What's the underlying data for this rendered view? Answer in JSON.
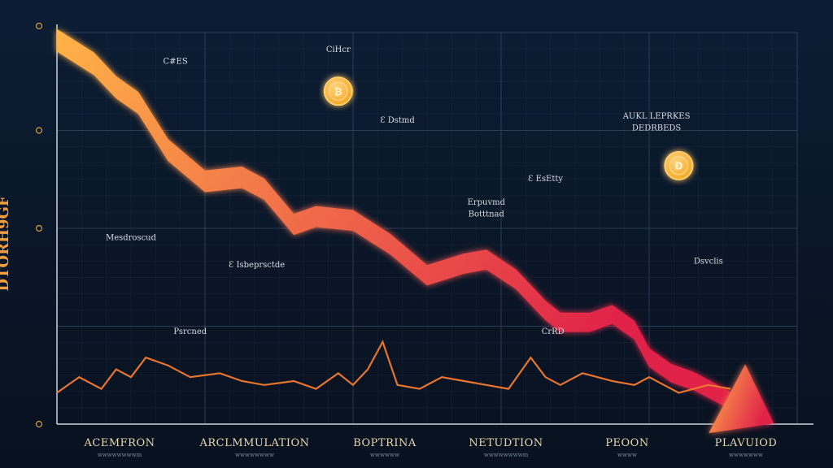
{
  "colors": {
    "background_top": "#0c1d33",
    "background_bottom": "#08111f",
    "grid": "#3a4c66",
    "trend_light": "#ffb347",
    "trend_dark": "#e0204a",
    "volume_line": "#e8752e",
    "coin": "#f5a623"
  },
  "chart_data": {
    "type": "line",
    "ylabel": "DTORH9GF",
    "x_axis_labels": [
      {
        "label": "ACEMFRON",
        "sub": "wwwwwwwwm"
      },
      {
        "label": "ARCLMMULATION",
        "sub": "wwwwwwww"
      },
      {
        "label": "BOPTRINA",
        "sub": "wwwwww"
      },
      {
        "label": "NETUDTION",
        "sub": "wwwwwwwwm"
      },
      {
        "label": "PEOON",
        "sub": "wwww"
      },
      {
        "label": "PLAVUIOD",
        "sub": "wwwwwww"
      }
    ],
    "xlim": [
      0,
      100
    ],
    "ylim": [
      0,
      100
    ],
    "series": [
      {
        "x": [
          0,
          5,
          8,
          11,
          15,
          20,
          25,
          28,
          32,
          35,
          40,
          45,
          50,
          55,
          58,
          62,
          66,
          68,
          72,
          75,
          78,
          80,
          83,
          86,
          89,
          91
        ],
        "y": [
          98,
          92,
          86,
          82,
          70,
          62,
          63,
          60,
          51,
          53,
          52,
          46,
          38,
          41,
          42,
          37,
          29,
          26,
          26,
          28,
          24,
          17,
          13,
          11,
          8,
          6
        ]
      },
      {
        "x": [
          0,
          3,
          6,
          8,
          10,
          12,
          15,
          18,
          22,
          25,
          28,
          32,
          35,
          38,
          40,
          42,
          44,
          46,
          49,
          52,
          55,
          58,
          61,
          64,
          66,
          68,
          71,
          75,
          78,
          80,
          84,
          88,
          91
        ],
        "y": [
          8,
          12,
          9,
          14,
          12,
          17,
          15,
          12,
          13,
          11,
          10,
          11,
          9,
          13,
          10,
          14,
          21,
          10,
          9,
          12,
          11,
          10,
          9,
          17,
          12,
          10,
          13,
          11,
          10,
          12,
          8,
          10,
          9
        ]
      }
    ],
    "annotations": [
      {
        "text": "C#ES",
        "x": 16,
        "y": 92
      },
      {
        "text": "CiHcr",
        "x": 38,
        "y": 95
      },
      {
        "text": "Ɛ Dstmd",
        "x": 46,
        "y": 77
      },
      {
        "text": "AUKL LEPRKES",
        "x": 81,
        "y": 78
      },
      {
        "text": "DEDRBEDS",
        "x": 81,
        "y": 75
      },
      {
        "text": "Ɛ EsEtty",
        "x": 66,
        "y": 62
      },
      {
        "text": "Erpuvmd",
        "x": 58,
        "y": 56
      },
      {
        "text": "Botttnad",
        "x": 58,
        "y": 53
      },
      {
        "text": "Mesdroscud",
        "x": 10,
        "y": 47
      },
      {
        "text": "Dsvclis",
        "x": 88,
        "y": 41
      },
      {
        "text": "Ɛ Isbeprsctde",
        "x": 27,
        "y": 40
      },
      {
        "text": "Psrcned",
        "x": 18,
        "y": 23
      },
      {
        "text": "CrRD",
        "x": 67,
        "y": 23
      }
    ],
    "coins": [
      {
        "symbol": "₿",
        "x": 38,
        "y": 85
      },
      {
        "symbol": "Ɖ",
        "x": 84,
        "y": 66
      }
    ],
    "grid": true
  }
}
